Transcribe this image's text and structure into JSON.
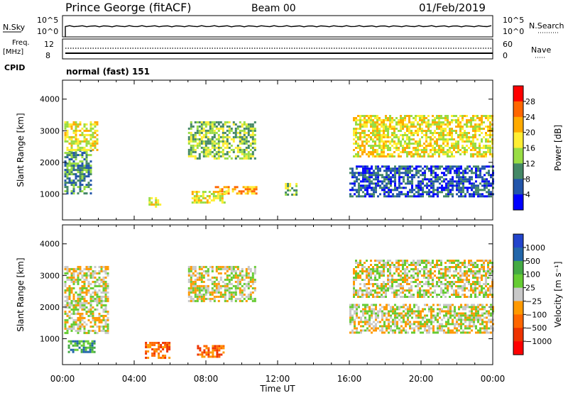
{
  "header": {
    "station": "Prince George (fitACF)",
    "beam": "Beam 00",
    "date": "01/Feb/2019"
  },
  "panels": {
    "nsky": {
      "label": "N.Sky",
      "ymax_label": "10^5",
      "ymin_label": "10^0",
      "right_label": "N.Search",
      "right_max": "10^5",
      "right_min": "10^0"
    },
    "freq": {
      "label_line1": "Freq.",
      "label_line2": "[MHz]",
      "left_top": "12",
      "left_bottom": "8",
      "right_label": "Nave",
      "right_top": "60",
      "right_bottom": "0"
    },
    "cpid": {
      "label": "CPID",
      "value": "normal (fast) 151"
    }
  },
  "colorbars": {
    "power": {
      "label": "Power [dB]",
      "ticks": [
        "28",
        "24",
        "20",
        "16",
        "12",
        "8",
        "4"
      ],
      "colors": [
        "#ff0000",
        "#ff6600",
        "#ffaa00",
        "#ffee33",
        "#99dd44",
        "#448866",
        "#2255aa",
        "#0000ff"
      ]
    },
    "velocity": {
      "label": "Velocity [m s⁻¹]",
      "ticks": [
        "1000",
        "500",
        "100",
        "25",
        "−25",
        "−100",
        "−500",
        "−1000"
      ],
      "colors": [
        "#2244cc",
        "#2266aa",
        "#44aa44",
        "#66cc33",
        "#c8c8c8",
        "#ff9900",
        "#ff6600",
        "#ee3300",
        "#ff0000"
      ]
    }
  },
  "chart_data": [
    {
      "type": "heatmap",
      "title": "",
      "xlabel": "",
      "ylabel": "Slant Range [km]",
      "x_ticks": [
        "00:00",
        "04:00",
        "08:00",
        "12:00",
        "16:00",
        "20:00",
        "00:00"
      ],
      "y_ticks": [
        "1000",
        "2000",
        "3000",
        "4000"
      ],
      "xlim_hours": [
        0,
        24
      ],
      "ylim_km": [
        180,
        4600
      ],
      "colorbar": "power",
      "regions": [
        {
          "t0": 0.1,
          "t1": 1.6,
          "r0": 1050,
          "r1": 2400,
          "level": 5
        },
        {
          "t0": 0.1,
          "t1": 2.0,
          "r0": 2400,
          "r1": 3300,
          "level": 3
        },
        {
          "t0": 7.0,
          "t1": 10.8,
          "r0": 2100,
          "r1": 3300,
          "level": 4
        },
        {
          "t0": 4.8,
          "t1": 5.5,
          "r0": 600,
          "r1": 900,
          "level": 3
        },
        {
          "t0": 7.2,
          "t1": 9.0,
          "r0": 700,
          "r1": 1100,
          "level": 3
        },
        {
          "t0": 8.5,
          "t1": 10.8,
          "r0": 1000,
          "r1": 1250,
          "level": 2
        },
        {
          "t0": 12.4,
          "t1": 13.0,
          "r0": 950,
          "r1": 1350,
          "level": 4
        },
        {
          "t0": 16.0,
          "t1": 24.0,
          "r0": 900,
          "r1": 1900,
          "level": 6
        },
        {
          "t0": 16.2,
          "t1": 24.0,
          "r0": 2200,
          "r1": 3500,
          "level": 3
        }
      ]
    },
    {
      "type": "heatmap",
      "title": "",
      "xlabel": "Time UT",
      "ylabel": "Slant Range [km]",
      "x_ticks": [
        "00:00",
        "04:00",
        "08:00",
        "12:00",
        "16:00",
        "20:00",
        "00:00"
      ],
      "y_ticks": [
        "1000",
        "2000",
        "3000",
        "4000"
      ],
      "xlim_hours": [
        0,
        24
      ],
      "ylim_km": [
        180,
        4600
      ],
      "colorbar": "velocity",
      "regions": [
        {
          "t0": 0.1,
          "t1": 2.5,
          "r0": 1200,
          "r1": 3300,
          "level": 4
        },
        {
          "t0": 0.3,
          "t1": 1.8,
          "r0": 600,
          "r1": 950,
          "level": 2
        },
        {
          "t0": 4.6,
          "t1": 6.0,
          "r0": 400,
          "r1": 900,
          "level": 6
        },
        {
          "t0": 7.0,
          "t1": 10.8,
          "r0": 2200,
          "r1": 3300,
          "level": 4
        },
        {
          "t0": 7.5,
          "t1": 9.0,
          "r0": 400,
          "r1": 800,
          "level": 6
        },
        {
          "t0": 16.0,
          "t1": 24.0,
          "r0": 1200,
          "r1": 2100,
          "level": 4
        },
        {
          "t0": 16.2,
          "t1": 24.0,
          "r0": 2300,
          "r1": 3500,
          "level": 4
        }
      ]
    }
  ]
}
